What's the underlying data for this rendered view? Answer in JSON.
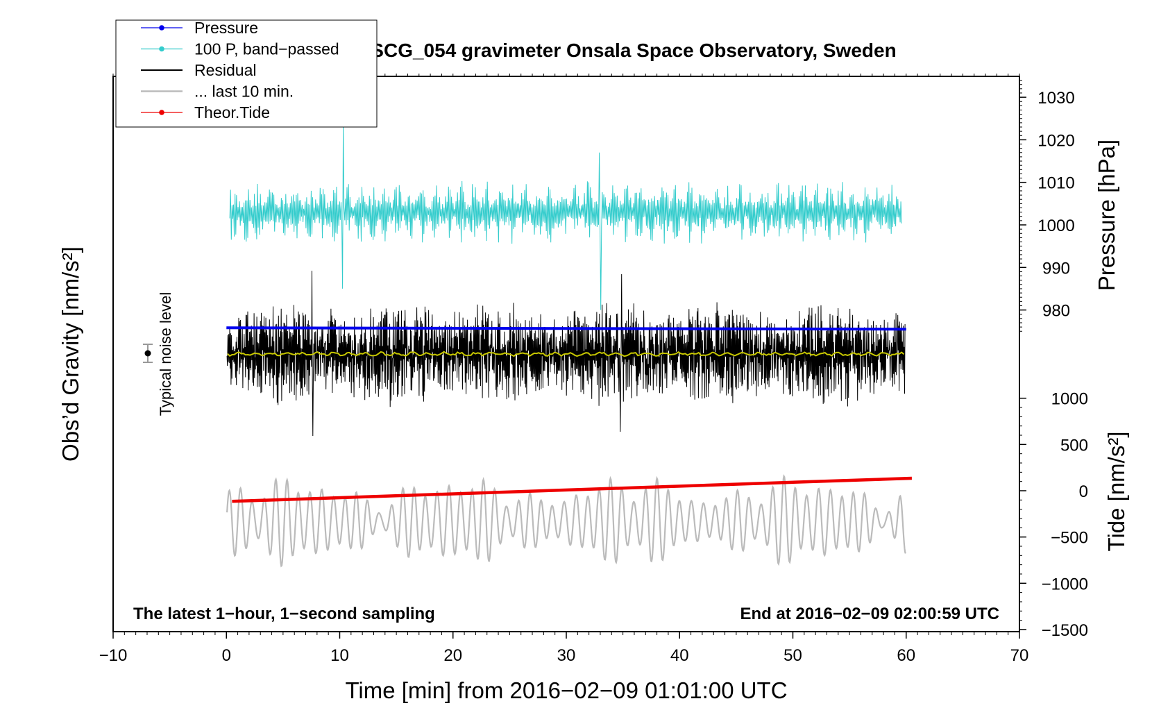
{
  "chart_data": {
    "type": "line",
    "title": "SCG_054 gravimeter Onsala Space Observatory, Sweden",
    "xlabel": "Time [min] from 2016−02−09 01:01:00 UTC",
    "ylabel_left": "Obs’d Gravity [nm/s²]",
    "ylabel_pressure": "Pressure [hPa]",
    "ylabel_tide": "Tide [nm/s²]",
    "xlim": [
      -10,
      70
    ],
    "x_ticks": [
      -10,
      0,
      10,
      20,
      30,
      40,
      50,
      60,
      70
    ],
    "x_tick_labels": [
      "−10",
      "0",
      "10",
      "20",
      "30",
      "40",
      "50",
      "60",
      "70"
    ],
    "pressure_ticks": [
      1030,
      1020,
      1010,
      1000,
      990,
      980
    ],
    "pressure_tick_labels": [
      "1030",
      "1020",
      "1010",
      "1000",
      "990",
      "980"
    ],
    "tide_ticks": [
      1000,
      500,
      0,
      -500,
      -1000,
      -1500
    ],
    "tide_tick_labels": [
      "1000",
      "500",
      "0",
      "−500",
      "−1000",
      "−1500"
    ],
    "legend": [
      {
        "name": "Pressure",
        "color": "#0000ee",
        "marker": true
      },
      {
        "name": "100 P, band−passed",
        "color": "#33cccc",
        "marker": true
      },
      {
        "name": "Residual",
        "color": "#000000",
        "marker": false
      },
      {
        "name": "... last 10 min.",
        "color": "#bbbbbb",
        "marker": false
      },
      {
        "name": "Theor.Tide",
        "color": "#ee0000",
        "marker": true
      }
    ],
    "legend_position": "top-left",
    "annotations": {
      "bottom_left": "The latest 1−hour, 1−second sampling",
      "bottom_right": "End at 2016−02−09 02:00:59 UTC",
      "noise_label": "Typical noise level"
    },
    "series": [
      {
        "name": "Pressure",
        "color": "#0000ee",
        "x_range": [
          0,
          60
        ],
        "pressure_hPa_start": 975.8,
        "pressure_hPa_end": 975.5
      },
      {
        "name": "100 P, band−passed",
        "color": "#33cccc",
        "x_range": [
          0,
          60
        ],
        "center_hPa": 1003,
        "amplitude_hPa": 6
      },
      {
        "name": "Residual",
        "color": "#000000",
        "x_range": [
          0,
          60
        ]
      },
      {
        "name": "Residual smoothed",
        "color": "#c8c800",
        "x_range": [
          0,
          60
        ]
      },
      {
        "name": "... last 10 min.",
        "color": "#bbbbbb",
        "x_range": [
          0,
          60
        ],
        "center_tide": -330,
        "amplitude_tide": 450
      },
      {
        "name": "Theor.Tide",
        "color": "#ee0000",
        "x_range": [
          0.5,
          60.5
        ],
        "tide_start": -115,
        "tide_end": 135
      }
    ],
    "noise_marker_x": -7
  }
}
